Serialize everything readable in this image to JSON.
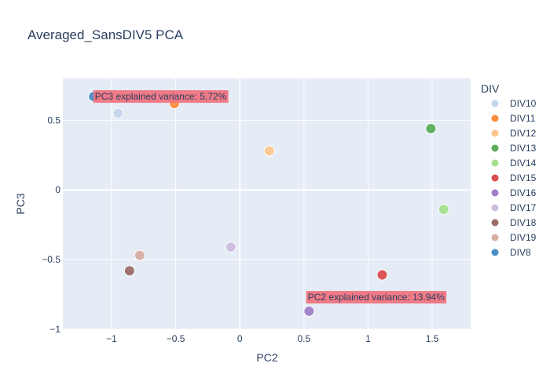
{
  "chart_data": {
    "type": "scatter",
    "title": "Averaged_SansDIV5 PCA",
    "xlabel": "PC2",
    "ylabel": "PC3",
    "xlim": [
      -1.38,
      1.8
    ],
    "ylim": [
      -1.0,
      0.8
    ],
    "xticks": [
      -1,
      -0.5,
      0,
      0.5,
      1,
      1.5
    ],
    "xtick_labels": [
      "−1",
      "−0.5",
      "0",
      "0.5",
      "1",
      "1.5"
    ],
    "yticks": [
      -1,
      -0.5,
      0,
      0.5
    ],
    "ytick_labels": [
      "−1",
      "−0.5",
      "0",
      "0.5"
    ],
    "grid": true,
    "legend": {
      "title": "DIV",
      "placement": "right"
    },
    "series": [
      {
        "name": "DIV10",
        "color": "#c6d6ee",
        "x": -0.95,
        "y": 0.55
      },
      {
        "name": "DIV11",
        "color": "#fc8d3b",
        "x": -0.51,
        "y": 0.62
      },
      {
        "name": "DIV12",
        "color": "#fdc68d",
        "x": 0.23,
        "y": 0.28
      },
      {
        "name": "DIV13",
        "color": "#5aae5a",
        "x": 1.49,
        "y": 0.44
      },
      {
        "name": "DIV14",
        "color": "#a6e08f",
        "x": 1.59,
        "y": -0.14
      },
      {
        "name": "DIV15",
        "color": "#d94f4f",
        "x": 1.11,
        "y": -0.61
      },
      {
        "name": "DIV16",
        "color": "#a07fc8",
        "x": 0.54,
        "y": -0.87
      },
      {
        "name": "DIV17",
        "color": "#cfbedd",
        "x": -0.07,
        "y": -0.41
      },
      {
        "name": "DIV18",
        "color": "#9c6d6a",
        "x": -0.86,
        "y": -0.58
      },
      {
        "name": "DIV19",
        "color": "#d6aea4",
        "x": -0.78,
        "y": -0.47
      },
      {
        "name": "DIV8",
        "color": "#4b8fc5",
        "x": -1.14,
        "y": 0.67
      }
    ],
    "annotations": [
      {
        "text": "PC3 explained variance: 5.72%",
        "x": -1.13,
        "y": 0.67,
        "color": "#f07480"
      },
      {
        "text": "PC2 explained variance: 13.94%",
        "x": 0.53,
        "y": -0.77,
        "color": "#f07480"
      }
    ]
  }
}
